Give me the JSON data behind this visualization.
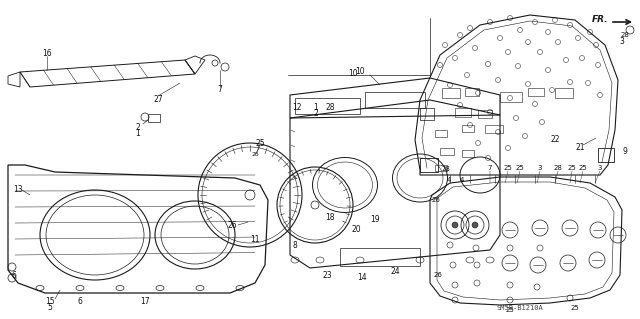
{
  "bg_color": "#ffffff",
  "line_color": "#1a1a1a",
  "label_color": "#111111",
  "fig_width": 6.4,
  "fig_height": 3.19,
  "dpi": 100,
  "watermark": "SM5B-B1210A",
  "fr_label": "FR."
}
